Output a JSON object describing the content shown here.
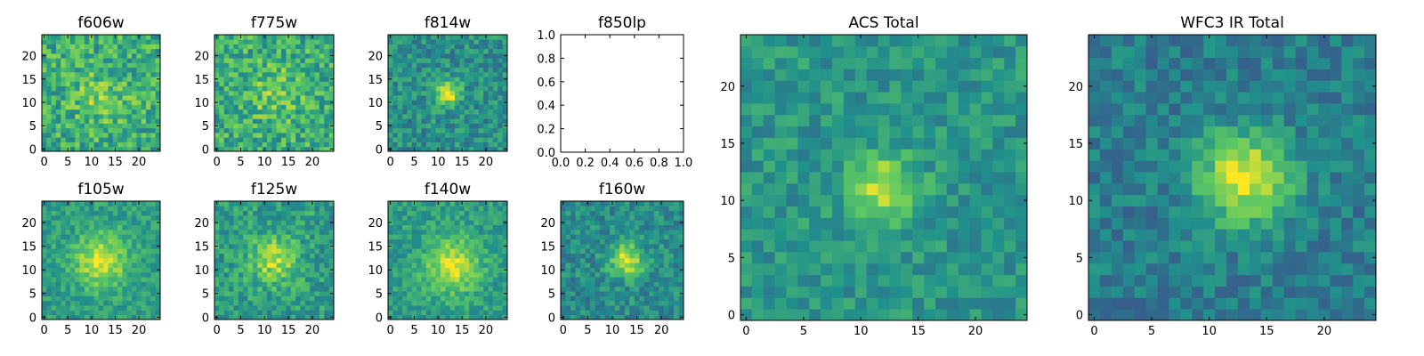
{
  "figure": {
    "name": "multi-band postage stamp cutouts"
  },
  "colormap": {
    "name": "viridis",
    "stops": [
      "#440154",
      "#3b528b",
      "#21918c",
      "#5ec962",
      "#fde725"
    ]
  },
  "chart_data": [
    {
      "type": "heatmap",
      "title": "f606w",
      "grid_size": 25,
      "source_center": [
        12,
        11
      ],
      "source_sigma": 4.0,
      "source_amplitude": 0.15,
      "background": 0.62,
      "noise": 0.2,
      "seed": 11,
      "xticks": [
        0,
        5,
        10,
        15,
        20
      ],
      "xtick_labels": [
        "0",
        "5",
        "10",
        "15",
        "20"
      ],
      "yticks": [
        0,
        5,
        10,
        15,
        20
      ],
      "ytick_labels": [
        "0",
        "5",
        "10",
        "15",
        "20"
      ]
    },
    {
      "type": "heatmap",
      "title": "f775w",
      "grid_size": 25,
      "source_center": [
        12,
        12
      ],
      "source_sigma": 4.0,
      "source_amplitude": 0.15,
      "background": 0.62,
      "noise": 0.2,
      "seed": 23,
      "xticks": [
        0,
        5,
        10,
        15,
        20
      ],
      "xtick_labels": [
        "0",
        "5",
        "10",
        "15",
        "20"
      ],
      "yticks": [
        0,
        5,
        10,
        15,
        20
      ],
      "ytick_labels": [
        "0",
        "5",
        "10",
        "15",
        "20"
      ]
    },
    {
      "type": "heatmap",
      "title": "f814w",
      "grid_size": 25,
      "source_center": [
        12,
        12
      ],
      "source_sigma": 1.8,
      "source_amplitude": 0.5,
      "background": 0.5,
      "noise": 0.15,
      "seed": 37,
      "xticks": [
        0,
        5,
        10,
        15,
        20
      ],
      "xtick_labels": [
        "0",
        "5",
        "10",
        "15",
        "20"
      ],
      "yticks": [
        0,
        5,
        10,
        15,
        20
      ],
      "ytick_labels": [
        "0",
        "5",
        "10",
        "15",
        "20"
      ]
    },
    {
      "type": "empty",
      "title": "f850lp",
      "xlim": [
        0.0,
        1.0
      ],
      "ylim": [
        0.0,
        1.0
      ],
      "xticks": [
        0.0,
        0.2,
        0.4,
        0.6,
        0.8,
        1.0
      ],
      "xtick_labels": [
        "0.0",
        "0.2",
        "0.4",
        "0.6",
        "0.8",
        "1.0"
      ],
      "yticks": [
        0.0,
        0.2,
        0.4,
        0.6,
        0.8,
        1.0
      ],
      "ytick_labels": [
        "0.0",
        "0.2",
        "0.4",
        "0.6",
        "0.8",
        "1.0"
      ]
    },
    {
      "type": "heatmap",
      "title": "f105w",
      "grid_size": 25,
      "source_center": [
        12,
        12
      ],
      "source_sigma": 4.0,
      "source_amplitude": 0.38,
      "background": 0.55,
      "noise": 0.12,
      "seed": 41,
      "xticks": [
        0,
        5,
        10,
        15,
        20
      ],
      "xtick_labels": [
        "0",
        "5",
        "10",
        "15",
        "20"
      ],
      "yticks": [
        0,
        5,
        10,
        15,
        20
      ],
      "ytick_labels": [
        "0",
        "5",
        "10",
        "15",
        "20"
      ]
    },
    {
      "type": "heatmap",
      "title": "f125w",
      "grid_size": 25,
      "source_center": [
        12,
        12
      ],
      "source_sigma": 3.5,
      "source_amplitude": 0.33,
      "background": 0.55,
      "noise": 0.15,
      "seed": 53,
      "xticks": [
        0,
        5,
        10,
        15,
        20
      ],
      "xtick_labels": [
        "0",
        "5",
        "10",
        "15",
        "20"
      ],
      "yticks": [
        0,
        5,
        10,
        15,
        20
      ],
      "ytick_labels": [
        "0",
        "5",
        "10",
        "15",
        "20"
      ]
    },
    {
      "type": "heatmap",
      "title": "f140w",
      "grid_size": 25,
      "source_center": [
        13,
        11
      ],
      "source_sigma": 4.0,
      "source_amplitude": 0.38,
      "background": 0.55,
      "noise": 0.12,
      "seed": 67,
      "xticks": [
        0,
        5,
        10,
        15,
        20
      ],
      "xtick_labels": [
        "0",
        "5",
        "10",
        "15",
        "20"
      ],
      "yticks": [
        0,
        5,
        10,
        15,
        20
      ],
      "ytick_labels": [
        "0",
        "5",
        "10",
        "15",
        "20"
      ]
    },
    {
      "type": "heatmap",
      "title": "f160w",
      "grid_size": 25,
      "source_center": [
        13,
        12
      ],
      "source_sigma": 2.5,
      "source_amplitude": 0.45,
      "background": 0.48,
      "noise": 0.14,
      "seed": 79,
      "xticks": [
        0,
        5,
        10,
        15,
        20
      ],
      "xtick_labels": [
        "0",
        "5",
        "10",
        "15",
        "20"
      ],
      "yticks": [
        0,
        5,
        10,
        15,
        20
      ],
      "ytick_labels": [
        "0",
        "5",
        "10",
        "15",
        "20"
      ]
    },
    {
      "type": "heatmap",
      "title": "ACS Total",
      "grid_size": 25,
      "source_center": [
        12,
        11
      ],
      "source_sigma": 2.0,
      "source_amplitude": 0.42,
      "background": 0.52,
      "noise": 0.12,
      "seed": 83,
      "xticks": [
        0,
        5,
        10,
        15,
        20
      ],
      "xtick_labels": [
        "0",
        "5",
        "10",
        "15",
        "20"
      ],
      "yticks": [
        0,
        5,
        10,
        15,
        20
      ],
      "ytick_labels": [
        "0",
        "5",
        "10",
        "15",
        "20"
      ]
    },
    {
      "type": "heatmap",
      "title": "WFC3 IR Total",
      "grid_size": 25,
      "source_center": [
        13,
        12
      ],
      "source_sigma": 2.8,
      "source_amplitude": 0.55,
      "background": 0.42,
      "noise": 0.12,
      "seed": 97,
      "xticks": [
        0,
        5,
        10,
        15,
        20
      ],
      "xtick_labels": [
        "0",
        "5",
        "10",
        "15",
        "20"
      ],
      "yticks": [
        0,
        5,
        10,
        15,
        20
      ],
      "ytick_labels": [
        "0",
        "5",
        "10",
        "15",
        "20"
      ]
    }
  ]
}
